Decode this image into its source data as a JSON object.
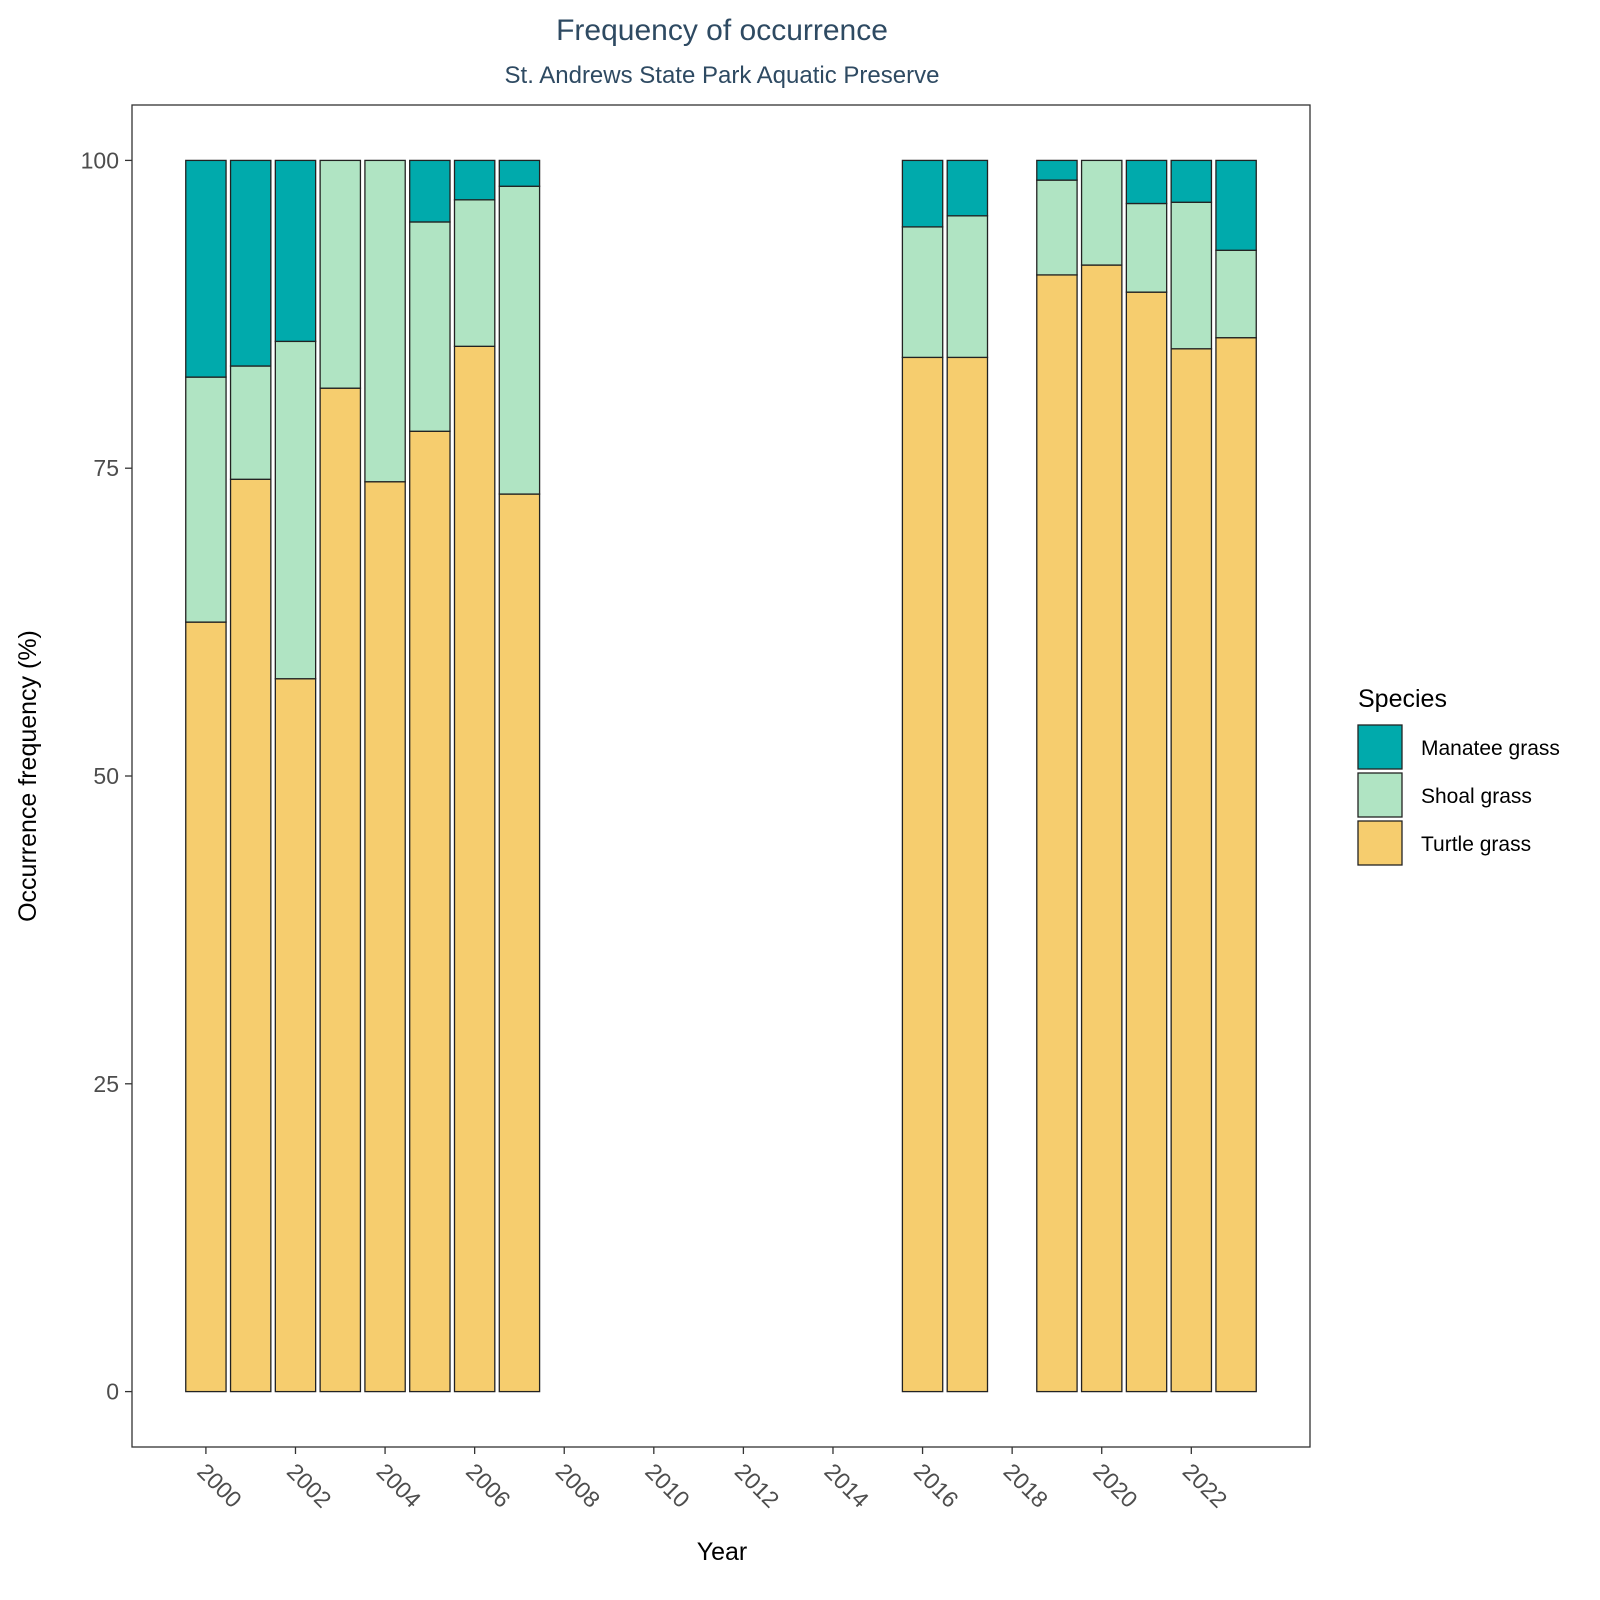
{
  "chart_data": {
    "type": "bar",
    "stacked": true,
    "title": "Frequency of occurrence",
    "subtitle": "St. Andrews State Park Aquatic Preserve",
    "xlabel": "Year",
    "ylabel": "Occurrence frequency (%)",
    "xlim": [
      1998.35,
      2024.65
    ],
    "ylim": [
      -4.5,
      104.5
    ],
    "x_ticks": [
      2000,
      2002,
      2004,
      2006,
      2008,
      2010,
      2012,
      2014,
      2016,
      2018,
      2020,
      2022
    ],
    "x_tick_labels": [
      "2000",
      "2002",
      "2004",
      "2006",
      "2008",
      "2010",
      "2012",
      "2014",
      "2016",
      "2018",
      "2020",
      "2022"
    ],
    "y_ticks": [
      0,
      25,
      50,
      75,
      100
    ],
    "y_tick_labels": [
      "0",
      "25",
      "50",
      "75",
      "100"
    ],
    "grid": false,
    "legend": {
      "title": "Species",
      "position": "right",
      "entries": [
        "Manatee grass",
        "Shoal grass",
        "Turtle grass"
      ]
    },
    "x": [
      2000,
      2001,
      2002,
      2003,
      2004,
      2005,
      2006,
      2007,
      2016,
      2017,
      2019,
      2020,
      2021,
      2022,
      2023
    ],
    "series": [
      {
        "name": "Turtle grass",
        "color": "#f6cd6e",
        "values": [
          62.5,
          74.1,
          57.9,
          81.5,
          73.9,
          78.0,
          84.9,
          72.9,
          84.0,
          84.0,
          90.7,
          91.5,
          89.3,
          84.7,
          85.6
        ]
      },
      {
        "name": "Shoal grass",
        "color": "#b0e4c3",
        "values": [
          19.9,
          9.2,
          27.4,
          18.5,
          26.1,
          17.0,
          11.9,
          25.0,
          10.6,
          11.5,
          7.7,
          8.5,
          7.2,
          11.9,
          7.1
        ]
      },
      {
        "name": "Manatee grass",
        "color": "#00aaac",
        "values": [
          17.6,
          16.7,
          14.7,
          0,
          0,
          5.0,
          3.2,
          2.1,
          5.4,
          4.5,
          1.6,
          0,
          3.5,
          3.4,
          7.3
        ]
      }
    ]
  }
}
